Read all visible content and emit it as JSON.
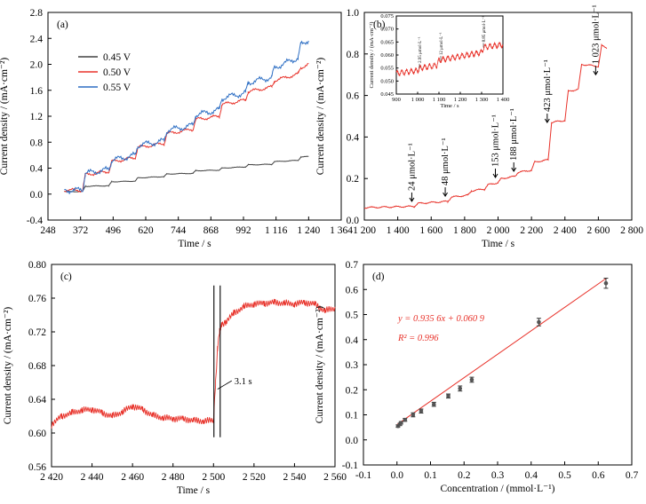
{
  "chart_data": [
    {
      "panel": "(a)",
      "type": "line",
      "xlabel": "Time / s",
      "ylabel": "Current density / (mA·cm⁻²)",
      "xlim": [
        248,
        1364
      ],
      "ylim": [
        -0.4,
        2.8
      ],
      "x_ticks": [
        "248",
        "372",
        "496",
        "620",
        "744",
        "868",
        "992",
        "1 116",
        "1 240",
        "1 364"
      ],
      "y_ticks": [
        "-0.4",
        "0.0",
        "0.4",
        "0.8",
        "1.2",
        "1.6",
        "2.0",
        "2.4",
        "2.8"
      ],
      "legend_position": "top-left",
      "colors": {
        "0.45 V": "#404040",
        "0.50 V": "#e8322a",
        "0.55 V": "#2e6fc4"
      },
      "series": [
        {
          "name": "0.45 V",
          "x": [
            310,
            380,
            390,
            480,
            490,
            580,
            590,
            690,
            700,
            800,
            810,
            900,
            910,
            1000,
            1010,
            1100,
            1110,
            1200,
            1210,
            1240
          ],
          "values": [
            0.04,
            0.04,
            0.12,
            0.13,
            0.19,
            0.2,
            0.25,
            0.27,
            0.31,
            0.32,
            0.36,
            0.37,
            0.4,
            0.42,
            0.45,
            0.46,
            0.5,
            0.52,
            0.57,
            0.58
          ]
        },
        {
          "name": "0.50 V",
          "x": [
            310,
            380,
            390,
            480,
            490,
            580,
            590,
            690,
            700,
            800,
            810,
            900,
            910,
            1000,
            1010,
            1100,
            1110,
            1200,
            1210,
            1240
          ],
          "values": [
            0.06,
            0.06,
            0.3,
            0.35,
            0.5,
            0.56,
            0.72,
            0.78,
            0.93,
            1.0,
            1.15,
            1.2,
            1.38,
            1.45,
            1.58,
            1.65,
            1.75,
            1.85,
            1.95,
            2.0
          ]
        },
        {
          "name": "0.55 V",
          "x": [
            310,
            380,
            390,
            480,
            490,
            580,
            590,
            690,
            700,
            800,
            810,
            900,
            910,
            1000,
            1010,
            1100,
            1110,
            1200,
            1210,
            1240
          ],
          "values": [
            0.06,
            0.06,
            0.32,
            0.38,
            0.52,
            0.6,
            0.75,
            0.82,
            0.98,
            1.06,
            1.22,
            1.3,
            1.48,
            1.56,
            1.72,
            1.8,
            1.95,
            2.1,
            2.3,
            2.38
          ]
        }
      ]
    },
    {
      "panel": "(b)",
      "type": "line",
      "xlabel": "Time / s",
      "ylabel": "Current density / (mA·cm⁻²)",
      "xlim": [
        1200,
        2800
      ],
      "ylim": [
        0.0,
        1.0
      ],
      "x_ticks": [
        "1 200",
        "1 400",
        "1 600",
        "1 800",
        "2 000",
        "2 200",
        "2 400",
        "2 600",
        "2 800"
      ],
      "y_ticks": [
        "0.0",
        "0.2",
        "0.4",
        "0.6",
        "0.8",
        "1.0"
      ],
      "color": "#e8322a",
      "series": [
        {
          "x": [
            1200,
            1500,
            1520,
            1700,
            1720,
            1820,
            1840,
            1920,
            1940,
            2000,
            2020,
            2100,
            2120,
            2200,
            2220,
            2300,
            2320,
            2400,
            2420,
            2480,
            2500,
            2600,
            2620,
            2650
          ],
          "values": [
            0.06,
            0.066,
            0.08,
            0.09,
            0.11,
            0.12,
            0.14,
            0.15,
            0.17,
            0.18,
            0.2,
            0.21,
            0.23,
            0.24,
            0.28,
            0.29,
            0.47,
            0.48,
            0.62,
            0.63,
            0.75,
            0.74,
            0.84,
            0.83
          ]
        }
      ],
      "annotations": [
        "24 μmol·L⁻¹",
        "48 μmol·L⁻¹",
        "153 μmol·L⁻¹",
        "188 μmol·L⁻¹",
        "423 μmol·L⁻¹",
        "1 023 μmol·L⁻¹"
      ],
      "inset": {
        "xlabel": "Time / s",
        "ylabel": "Current density / (mA·cm⁻²)",
        "xlim": [
          900,
          1400
        ],
        "ylim": [
          0.045,
          0.075
        ],
        "x_ticks": [
          "900",
          "1 000",
          "1 100",
          "1 200",
          "1 300",
          "1 400"
        ],
        "y_ticks": [
          "0.045",
          "0.050",
          "0.055",
          "0.060",
          "0.065",
          "0.070",
          "0.075"
        ],
        "annotations": [
          "2.95 μmol·L⁻¹",
          "12 μmol·L⁻¹",
          "8.85 μmol·L⁻¹"
        ],
        "series": [
          {
            "x": [
              900,
              1000,
              1010,
              1090,
              1100,
              1300,
              1310,
              1400
            ],
            "values": [
              0.053,
              0.054,
              0.055,
              0.056,
              0.058,
              0.061,
              0.063,
              0.064
            ]
          }
        ]
      }
    },
    {
      "panel": "(c)",
      "type": "line",
      "xlabel": "Time / s",
      "ylabel": "Current density / (mA·cm⁻²)",
      "xlim": [
        2420,
        2560
      ],
      "ylim": [
        0.56,
        0.8
      ],
      "x_ticks": [
        "2 420",
        "2 440",
        "2 460",
        "2 480",
        "2 500",
        "2 520",
        "2 540",
        "2 560"
      ],
      "y_ticks": [
        "0.56",
        "0.60",
        "0.64",
        "0.68",
        "0.72",
        "0.76",
        "0.80"
      ],
      "color": "#e8322a",
      "annotation": "3.1 s",
      "response_window": [
        2500.2,
        2503.3
      ],
      "series": [
        {
          "x": [
            2420,
            2425,
            2430,
            2435,
            2440,
            2445,
            2450,
            2455,
            2460,
            2465,
            2470,
            2475,
            2480,
            2485,
            2490,
            2495,
            2500,
            2501,
            2502,
            2503,
            2504,
            2506,
            2510,
            2515,
            2520,
            2525,
            2530,
            2535,
            2540,
            2545,
            2550,
            2555,
            2560
          ],
          "values": [
            0.61,
            0.62,
            0.624,
            0.627,
            0.628,
            0.624,
            0.62,
            0.625,
            0.632,
            0.628,
            0.621,
            0.618,
            0.617,
            0.617,
            0.615,
            0.614,
            0.615,
            0.66,
            0.7,
            0.72,
            0.728,
            0.732,
            0.742,
            0.75,
            0.753,
            0.754,
            0.755,
            0.754,
            0.753,
            0.755,
            0.753,
            0.745,
            0.748
          ]
        }
      ]
    },
    {
      "panel": "(d)",
      "type": "scatter",
      "xlabel": "Concentration / (mmol·L⁻¹)",
      "ylabel": "Current density / (mA·cm⁻²)",
      "xlim": [
        -0.1,
        0.7
      ],
      "ylim": [
        -0.1,
        0.7
      ],
      "x_ticks": [
        "-0.1",
        "0.0",
        "0.1",
        "0.2",
        "0.3",
        "0.4",
        "0.5",
        "0.6",
        "0.7"
      ],
      "y_ticks": [
        "-0.1",
        "0.0",
        "0.1",
        "0.2",
        "0.3",
        "0.4",
        "0.5",
        "0.6",
        "0.7"
      ],
      "points_x": [
        0.003,
        0.009,
        0.012,
        0.024,
        0.048,
        0.072,
        0.11,
        0.153,
        0.188,
        0.223,
        0.423,
        0.623
      ],
      "points_y": [
        0.055,
        0.062,
        0.068,
        0.08,
        0.1,
        0.115,
        0.142,
        0.175,
        0.205,
        0.24,
        0.47,
        0.625
      ],
      "error": [
        0.005,
        0.005,
        0.005,
        0.006,
        0.008,
        0.008,
        0.008,
        0.008,
        0.01,
        0.01,
        0.015,
        0.02
      ],
      "fit": {
        "slope": 0.9356,
        "intercept": 0.0609
      },
      "equation": "y = 0.935 6x + 0.060 9",
      "r2": "R² = 0.996",
      "fit_color": "#e8322a"
    }
  ]
}
